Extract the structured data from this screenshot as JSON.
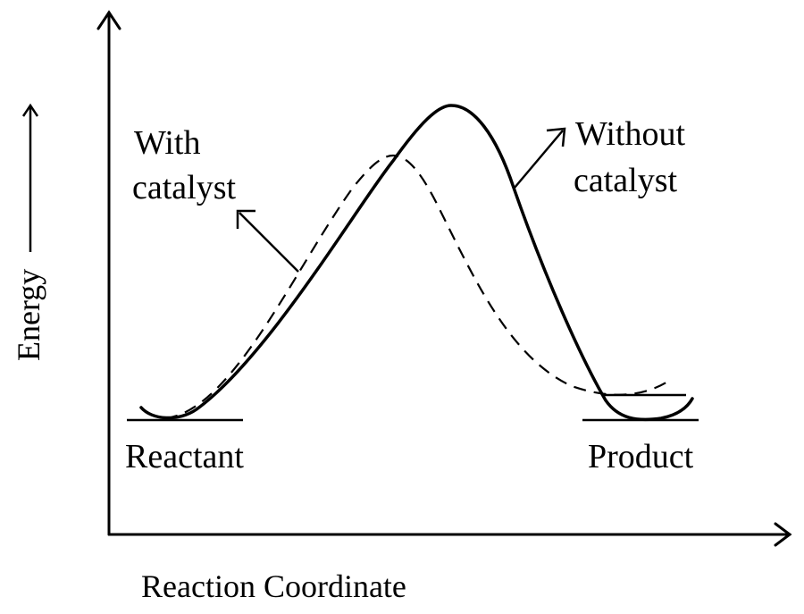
{
  "axes": {
    "x_label": "Reaction Coordinate",
    "y_label": "Energy"
  },
  "labels": {
    "with_catalyst_line1": "With",
    "with_catalyst_line2": "catalyst",
    "without_catalyst_line1": "Without",
    "without_catalyst_line2": "catalyst",
    "reactant": "Reactant",
    "product": "Product"
  }
}
